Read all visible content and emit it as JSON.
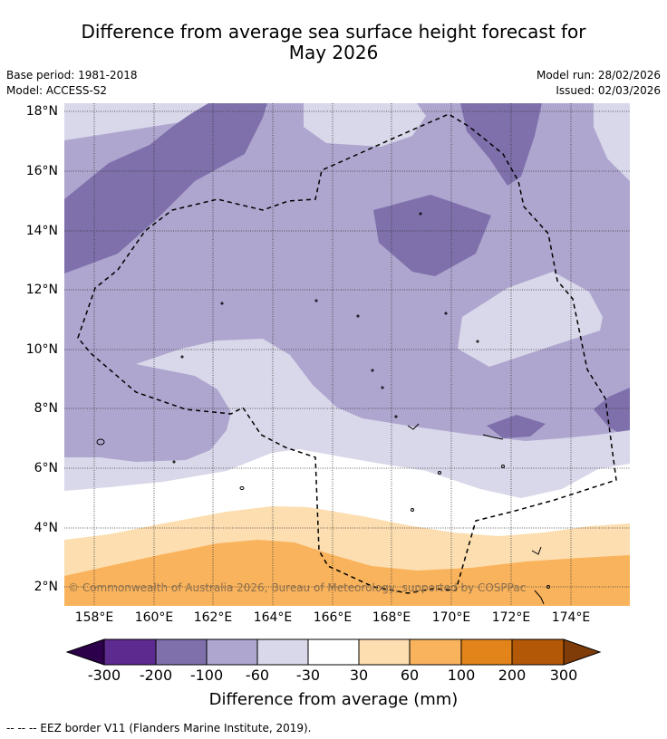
{
  "title_line1": "Difference from average sea surface height forecast for",
  "title_line2": "May 2026",
  "base_period": "Base period: 1981-2018",
  "model": "Model: ACCESS-S2",
  "model_run": "Model run: 28/02/2026",
  "issued": "Issued: 02/03/2026",
  "copyright": "© Commonwealth of Australia 2026, Bureau of Meteorology, supported by COSPPac",
  "lat_labels": [
    "18°N",
    "16°N",
    "14°N",
    "12°N",
    "10°N",
    "8°N",
    "6°N",
    "4°N",
    "2°N"
  ],
  "lon_labels": [
    "158°E",
    "160°E",
    "162°E",
    "164°E",
    "166°E",
    "168°E",
    "170°E",
    "172°E",
    "174°E"
  ],
  "colorbar": {
    "title": "Difference from average (mm)",
    "ticks": [
      "-300",
      "-200",
      "-100",
      "-60",
      "-30",
      "30",
      "60",
      "100",
      "200",
      "300"
    ],
    "colors": [
      "#2d004b",
      "#5d2a8f",
      "#7f70ac",
      "#aea6cf",
      "#d9d8ea",
      "#ffffff",
      "#fcdeb0",
      "#f9b35c",
      "#e3841a",
      "#b35807",
      "#7f3b08"
    ]
  },
  "footer": "--  --  -- EEZ border V11 (Flanders Marine Institute, 2019)."
}
